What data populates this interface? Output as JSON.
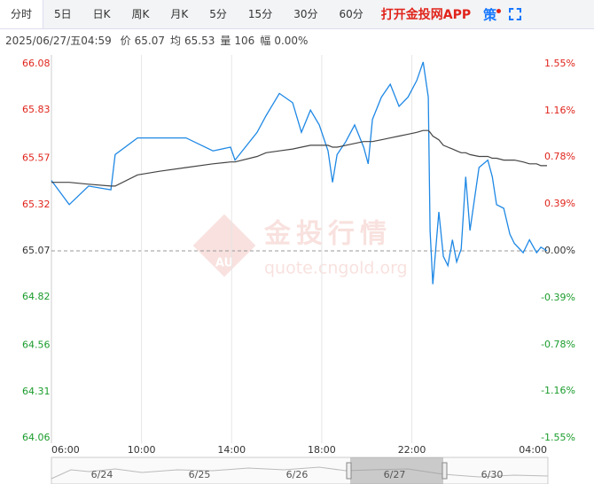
{
  "header": {
    "tabs": [
      "分时",
      "5日",
      "日K",
      "周K",
      "月K",
      "5分",
      "15分",
      "30分",
      "60分"
    ],
    "app_link": "打开金投网APP",
    "strategy": "策"
  },
  "info": {
    "datetime": "2025/06/27/五04:59",
    "items": [
      {
        "label": "价",
        "value": "65.07"
      },
      {
        "label": "均",
        "value": "65.53"
      },
      {
        "label": "量",
        "value": "106"
      },
      {
        "label": "幅",
        "value": "0.00%"
      }
    ]
  },
  "watermark": {
    "logo": "AU",
    "title": "金投行情",
    "url": "quote.cngold.org"
  },
  "navigator": {
    "dates": [
      "6/24",
      "6/25",
      "6/26",
      "6/27",
      "6/30"
    ]
  },
  "chart_data": {
    "type": "line",
    "x": [
      6.0,
      6.79,
      7.65,
      8.64,
      8.83,
      9.82,
      10.8,
      11.98,
      13.17,
      13.95,
      14.15,
      15.13,
      15.53,
      16.12,
      16.71,
      17.1,
      17.5,
      17.89,
      18.28,
      18.48,
      18.68,
      19.07,
      19.46,
      19.86,
      20.06,
      20.25,
      20.65,
      21.04,
      21.43,
      21.83,
      22.22,
      22.5,
      22.73,
      22.81,
      22.93,
      23.2,
      23.4,
      23.6,
      23.8,
      23.99,
      24.19,
      24.39,
      24.58,
      24.98,
      25.37,
      25.57,
      25.76,
      26.08,
      26.35,
      26.55,
      26.94,
      27.22,
      27.54,
      27.73,
      28.0
    ],
    "series": [
      {
        "name": "价",
        "color": "#1e88e5",
        "values": [
          65.45,
          65.32,
          65.42,
          65.4,
          65.59,
          65.68,
          65.68,
          65.68,
          65.61,
          65.63,
          65.56,
          65.71,
          65.8,
          65.92,
          65.87,
          65.71,
          65.83,
          65.75,
          65.61,
          65.44,
          65.59,
          65.66,
          65.75,
          65.63,
          65.54,
          65.78,
          65.9,
          65.97,
          65.85,
          65.9,
          65.99,
          66.09,
          65.9,
          65.18,
          64.89,
          65.28,
          65.04,
          64.99,
          65.13,
          65.01,
          65.08,
          65.47,
          65.18,
          65.52,
          65.56,
          65.47,
          65.32,
          65.3,
          65.16,
          65.11,
          65.06,
          65.13,
          65.06,
          65.09,
          65.07
        ]
      },
      {
        "name": "均",
        "color": "#444444",
        "values": [
          65.44,
          65.44,
          65.43,
          65.42,
          65.42,
          65.48,
          65.5,
          65.52,
          65.54,
          65.55,
          65.55,
          65.58,
          65.6,
          65.61,
          65.62,
          65.63,
          65.64,
          65.64,
          65.64,
          65.63,
          65.63,
          65.64,
          65.65,
          65.66,
          65.66,
          65.66,
          65.67,
          65.68,
          65.69,
          65.7,
          65.71,
          65.72,
          65.72,
          65.71,
          65.69,
          65.67,
          65.64,
          65.63,
          65.62,
          65.61,
          65.6,
          65.6,
          65.59,
          65.58,
          65.58,
          65.57,
          65.57,
          65.56,
          65.56,
          65.56,
          65.55,
          65.54,
          65.54,
          65.53,
          65.53
        ]
      }
    ],
    "xlim": [
      6,
      28
    ],
    "xticks": [
      {
        "value": 6,
        "label": "06:00"
      },
      {
        "value": 10,
        "label": "10:00"
      },
      {
        "value": 14,
        "label": "14:00"
      },
      {
        "value": 18,
        "label": "18:00"
      },
      {
        "value": 22,
        "label": "22:00"
      },
      {
        "value": 28,
        "label": "04:00"
      }
    ],
    "ylim": [
      64.06,
      66.08
    ],
    "yticks": [
      66.08,
      65.83,
      65.57,
      65.32,
      65.07,
      64.82,
      64.56,
      64.31,
      64.06
    ],
    "y2lim": [
      -1.55,
      1.55
    ],
    "y2ticks": [
      {
        "value": 1.55,
        "label": "1.55%"
      },
      {
        "value": 1.16,
        "label": "1.16%"
      },
      {
        "value": 0.78,
        "label": "0.78%"
      },
      {
        "value": 0.39,
        "label": "0.39%"
      },
      {
        "value": 0,
        "label": "0.00%"
      },
      {
        "value": -0.39,
        "label": "-0.39%"
      },
      {
        "value": -0.78,
        "label": "-0.78%"
      },
      {
        "value": -1.16,
        "label": "-1.16%"
      },
      {
        "value": -1.55,
        "label": "-1.55%"
      }
    ],
    "up_color": "#e0241b",
    "down_color": "#1a9c2c",
    "flat_color": "#333333",
    "grid": "x"
  }
}
